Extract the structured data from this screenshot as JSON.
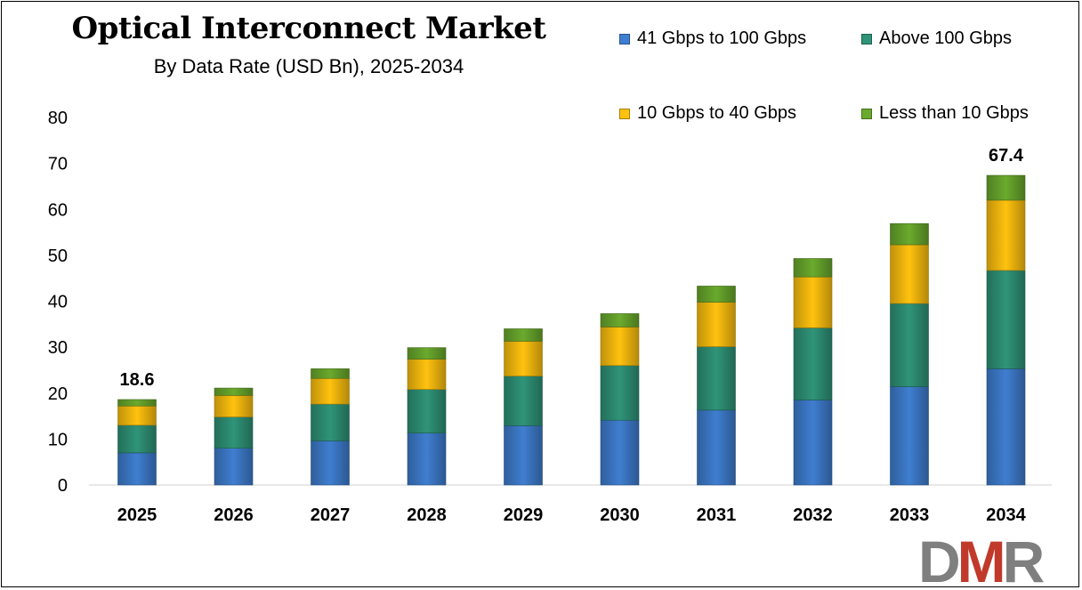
{
  "colors": {
    "41 Gbps to 100 Gbps": "#3f7ed0",
    "Above 100 Gbps": "#2f9478",
    "10 Gbps to 40 Gbps": "#ffc20e",
    "Less than 10 Gbps": "#6aaa2d",
    "logo_gray": "#7f7f7f",
    "logo_red": "#c0392b"
  },
  "logo": {
    "text": "DMR"
  },
  "chart_data": {
    "type": "bar",
    "stacked": true,
    "title": "Optical Interconnect Market",
    "subtitle": "By Data Rate (USD Bn), 2025-2034",
    "categories": [
      "2025",
      "2026",
      "2027",
      "2028",
      "2029",
      "2030",
      "2031",
      "2032",
      "2033",
      "2034"
    ],
    "series": [
      {
        "name": "41 Gbps to 100 Gbps",
        "values": [
          7.0,
          8.0,
          9.6,
          11.3,
          12.9,
          14.1,
          16.3,
          18.5,
          21.4,
          25.3
        ]
      },
      {
        "name": "Above 100 Gbps",
        "values": [
          6.0,
          6.8,
          8.0,
          9.5,
          10.8,
          11.9,
          13.8,
          15.7,
          18.1,
          21.4
        ]
      },
      {
        "name": "10 Gbps to 40 Gbps",
        "values": [
          4.2,
          4.7,
          5.6,
          6.6,
          7.6,
          8.4,
          9.7,
          11.1,
          12.8,
          15.3
        ]
      },
      {
        "name": "Less than 10 Gbps",
        "values": [
          1.4,
          1.6,
          2.1,
          2.5,
          2.7,
          2.9,
          3.5,
          4.0,
          4.6,
          5.4
        ]
      }
    ],
    "data_labels": [
      {
        "category": "2025",
        "text": "18.6"
      },
      {
        "category": "2034",
        "text": "67.4"
      }
    ],
    "ylim": [
      0,
      80
    ],
    "yticks": [
      0,
      10,
      20,
      30,
      40,
      50,
      60,
      70,
      80
    ],
    "xlabel": "",
    "ylabel": "",
    "grid": false,
    "legend_position": "top-right"
  }
}
